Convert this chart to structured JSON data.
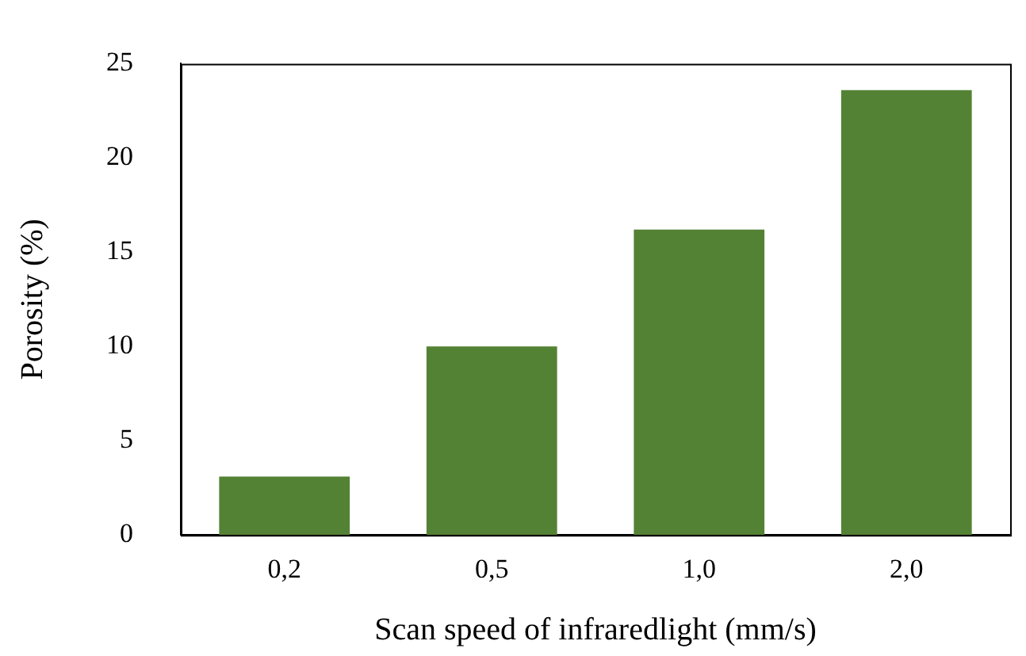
{
  "chart_data": {
    "type": "bar",
    "xlabel": "Scan speed of infraredlight (mm/s)",
    "ylabel": "Porosity (%)",
    "categories": [
      "0,2",
      "0,5",
      "1,0",
      "2,0"
    ],
    "values": [
      3.1,
      10.0,
      16.2,
      23.6
    ],
    "color": "#548235",
    "ylim": [
      0,
      25
    ],
    "yticks": [
      0,
      5,
      10,
      15,
      20,
      25
    ],
    "grid": false,
    "legend": false
  }
}
